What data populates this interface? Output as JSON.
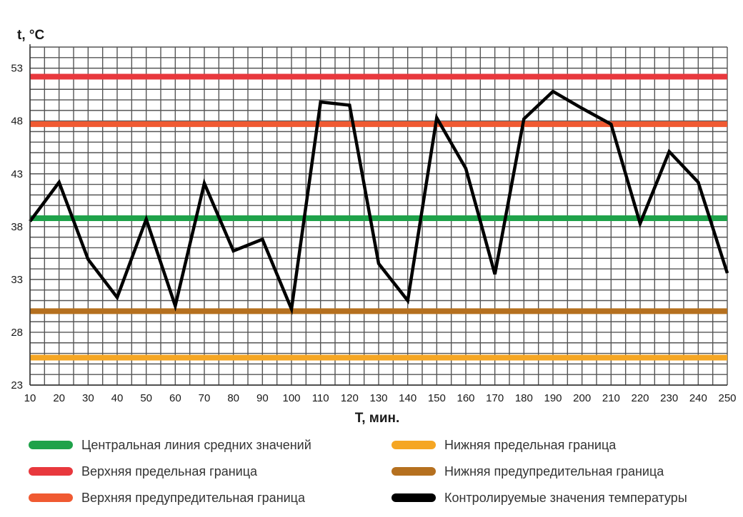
{
  "chart_data": {
    "type": "line",
    "xlabel": "T, мин.",
    "ylabel": "t, °C",
    "x_ticks": [
      10,
      20,
      30,
      40,
      50,
      60,
      70,
      80,
      90,
      100,
      110,
      120,
      130,
      140,
      150,
      160,
      170,
      180,
      190,
      200,
      210,
      220,
      230,
      240,
      250
    ],
    "y_ticks": [
      23,
      28,
      33,
      38,
      43,
      48,
      53
    ],
    "xlim": [
      10,
      250
    ],
    "ylim": [
      23,
      55
    ],
    "grid": true,
    "legend_position": "bottom",
    "series": [
      {
        "name": "Контролируемые значения температуры",
        "color": "#000000",
        "x": [
          10,
          20,
          30,
          40,
          50,
          60,
          70,
          80,
          90,
          100,
          110,
          120,
          130,
          140,
          150,
          160,
          170,
          180,
          190,
          200,
          210,
          220,
          230,
          240,
          250
        ],
        "y": [
          38.5,
          42.2,
          34.9,
          31.3,
          38.7,
          30.5,
          42.1,
          35.7,
          36.8,
          30.2,
          49.8,
          49.5,
          34.5,
          31.0,
          48.3,
          43.5,
          33.5,
          48.2,
          50.8,
          49.2,
          47.7,
          38.3,
          45.1,
          42.2,
          33.6
        ]
      }
    ],
    "reference_lines": [
      {
        "name": "Верхняя предельная граница",
        "value": 52.2,
        "color": "#e8383d"
      },
      {
        "name": "Верхняя предупредительная граница",
        "value": 47.7,
        "color": "#f05a32"
      },
      {
        "name": "Центральная линия средних значений",
        "value": 38.8,
        "color": "#1fa24a"
      },
      {
        "name": "Нижняя предупредительная граница",
        "value": 30.0,
        "color": "#b5701f"
      },
      {
        "name": "Нижняя предельная граница",
        "value": 25.6,
        "color": "#f5a623"
      }
    ]
  },
  "legend": [
    {
      "label": "Центральная линия средних значений",
      "color": "#1fa24a"
    },
    {
      "label": "Верхняя предельная граница",
      "color": "#e8383d"
    },
    {
      "label": "Верхняя предупредительная граница",
      "color": "#f05a32"
    },
    {
      "label": "Нижняя предельная граница",
      "color": "#f5a623"
    },
    {
      "label": "Нижняя предупредительная граница",
      "color": "#b5701f"
    },
    {
      "label": "Контролируемые значения температуры",
      "color": "#000000"
    }
  ]
}
